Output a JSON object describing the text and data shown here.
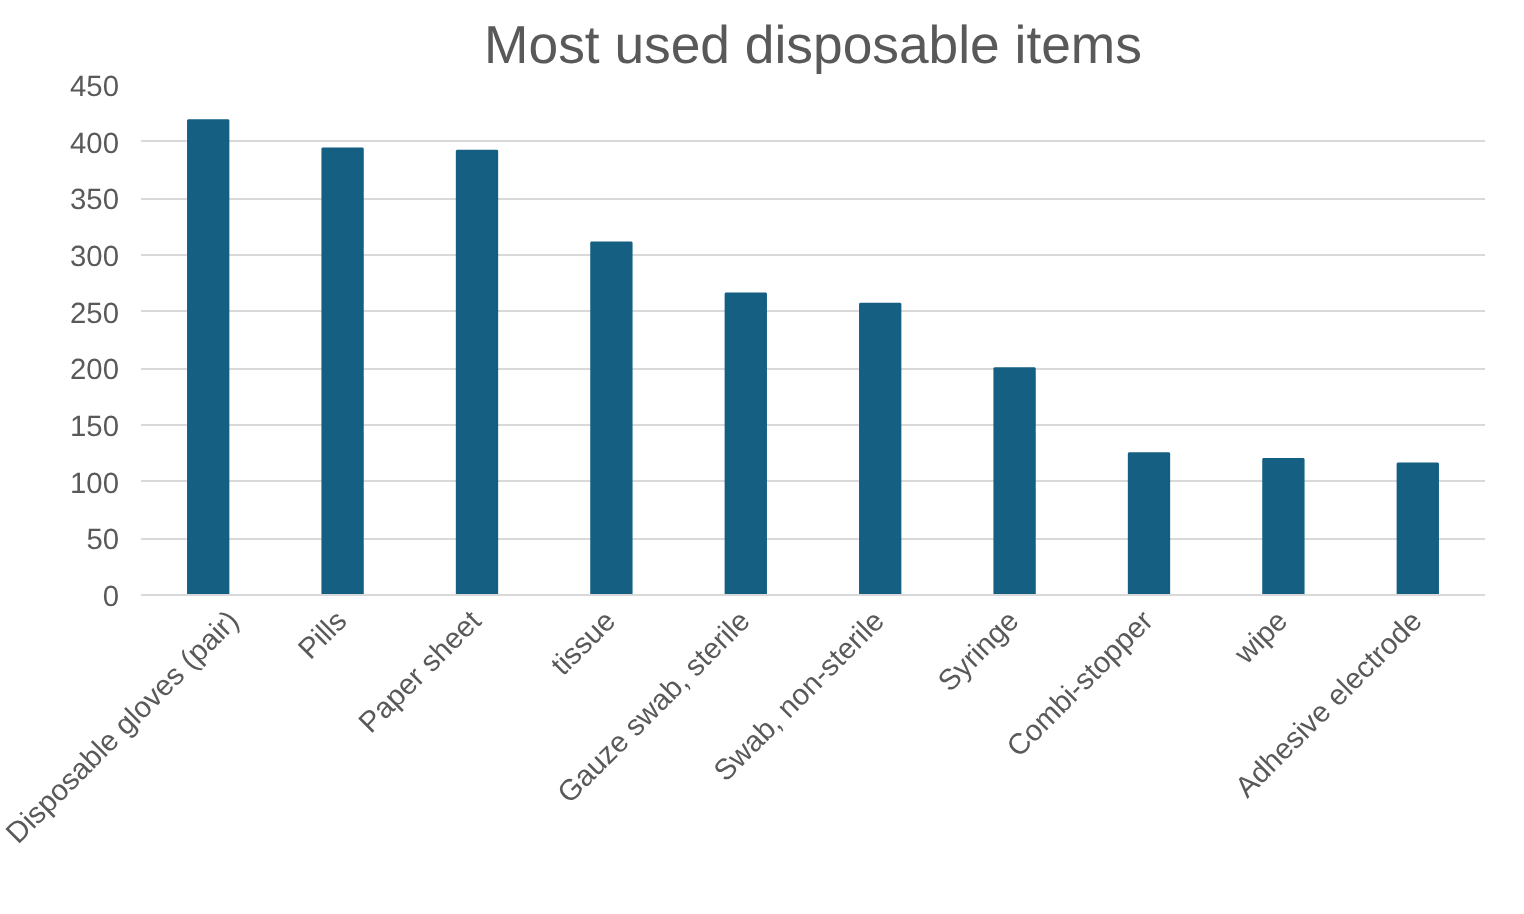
{
  "chart_data": {
    "type": "bar",
    "title": "Most used disposable items",
    "categories": [
      "Disposable gloves (pair)",
      "Pills",
      "Paper sheet",
      "tissue",
      "Gauze swab, sterile",
      "Swab, non-sterile",
      "Syringe",
      "Combi-stopper",
      "wipe",
      "Adhesive electrode"
    ],
    "values": [
      419,
      394,
      392,
      311,
      266,
      257,
      200,
      125,
      120,
      116
    ],
    "color": "#155f82",
    "ylim": [
      0,
      450
    ],
    "yticks": [
      0,
      50,
      100,
      150,
      200,
      250,
      300,
      350,
      400,
      450
    ],
    "grid": "y"
  }
}
